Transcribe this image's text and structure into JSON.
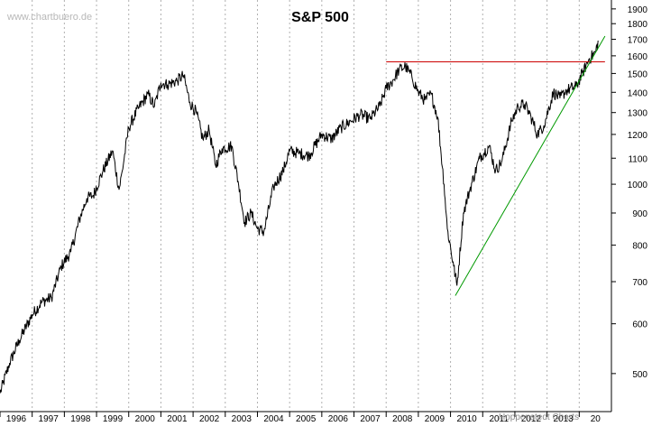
{
  "watermark": "www.chartbuero.de",
  "credit": "Hoppenstedt Charts",
  "chart_data": {
    "type": "line",
    "title": "S&P 500",
    "y_scale": "log",
    "ylim": [
      435,
      1950
    ],
    "y_ticks": [
      500,
      600,
      700,
      800,
      900,
      1000,
      1100,
      1200,
      1300,
      1400,
      1500,
      1600,
      1700,
      1800,
      1900
    ],
    "xlim": [
      1995.0,
      2014.0
    ],
    "x_tick_labels": [
      "1996",
      "1997",
      "1998",
      "1999",
      "2000",
      "2001",
      "2002",
      "2003",
      "2004",
      "2005",
      "2006",
      "2007",
      "2008",
      "2009",
      "2010",
      "2011",
      "2012",
      "2013",
      "20"
    ],
    "grid": {
      "vertical": true,
      "horizontal": false
    },
    "y_axis_position": "right",
    "colors": {
      "price": "#000000",
      "resistance": "#cc0000",
      "support": "#009900",
      "grid": "#b0b0b0"
    },
    "series": [
      {
        "x": [
          1995.0,
          1995.3,
          1995.6,
          1996.0,
          1996.3,
          1996.6,
          1996.9,
          1997.2,
          1997.5,
          1997.7,
          1997.9,
          1998.2,
          1998.5,
          1998.7,
          1998.8,
          1999.0,
          1999.3,
          1999.6,
          1999.8,
          2000.0,
          2000.2,
          2000.5,
          2000.7,
          2000.9,
          2001.1,
          2001.3,
          2001.5,
          2001.7,
          2001.9,
          2002.2,
          2002.4,
          2002.6,
          2002.8,
          2003.0,
          2003.2,
          2003.5,
          2003.8,
          2004.0,
          2004.3,
          2004.6,
          2005.0,
          2005.3,
          2005.6,
          2005.9,
          2006.2,
          2006.5,
          2006.8,
          2007.0,
          2007.2,
          2007.4,
          2007.6,
          2007.8,
          2008.0,
          2008.2,
          2008.4,
          2008.6,
          2008.8,
          2008.9,
          2009.1,
          2009.2,
          2009.4,
          2009.6,
          2009.9,
          2010.2,
          2010.4,
          2010.6,
          2010.9,
          2011.1,
          2011.3,
          2011.5,
          2011.7,
          2011.9,
          2012.2,
          2012.4,
          2012.6,
          2012.9,
          2013.1,
          2013.3,
          2013.5,
          2013.6
        ],
        "values": [
          465,
          520,
          565,
          620,
          650,
          660,
          740,
          780,
          890,
          950,
          960,
          1050,
          1130,
          980,
          1050,
          1230,
          1320,
          1390,
          1330,
          1450,
          1440,
          1460,
          1490,
          1350,
          1300,
          1180,
          1220,
          1070,
          1140,
          1150,
          1010,
          870,
          900,
          850,
          840,
          990,
          1050,
          1130,
          1120,
          1110,
          1200,
          1180,
          1230,
          1260,
          1290,
          1270,
          1330,
          1420,
          1460,
          1520,
          1540,
          1480,
          1400,
          1360,
          1390,
          1280,
          1000,
          850,
          740,
          690,
          900,
          980,
          1100,
          1150,
          1050,
          1090,
          1260,
          1330,
          1340,
          1280,
          1200,
          1240,
          1400,
          1370,
          1410,
          1430,
          1500,
          1580,
          1620,
          1690
        ]
      }
    ],
    "annotations": [
      {
        "type": "horizontal-line",
        "name": "resistance",
        "y": 1565,
        "x_start": 2007.0,
        "x_end": 2013.8
      },
      {
        "type": "trend-line",
        "name": "support",
        "points": [
          [
            2009.15,
            665
          ],
          [
            2013.8,
            1720
          ]
        ]
      }
    ]
  }
}
